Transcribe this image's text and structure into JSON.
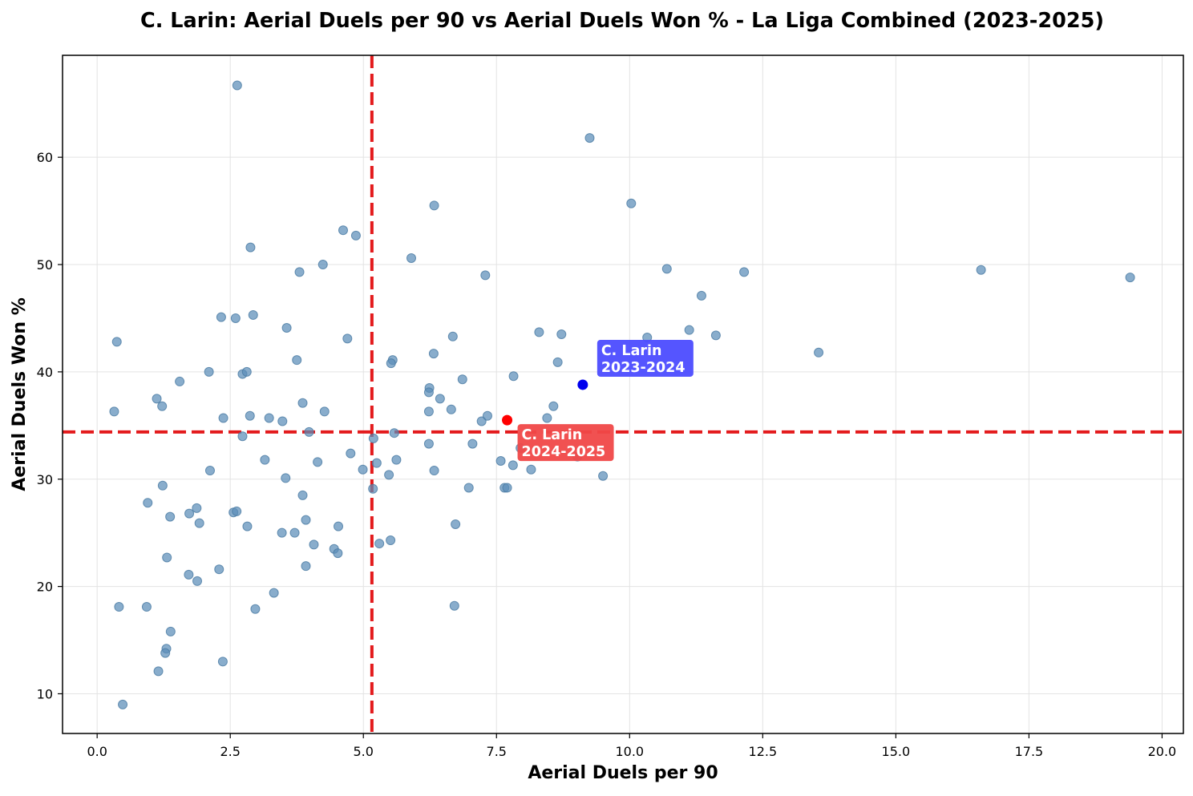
{
  "chart_data": {
    "type": "scatter",
    "title": "C. Larin: Aerial Duels per 90 vs Aerial Duels Won % - La Liga Combined (2023-2025)",
    "xlabel": "Aerial Duels per 90",
    "ylabel": "Aerial Duels Won %",
    "xlim": [
      -0.65,
      20.4
    ],
    "ylim": [
      6.3,
      69.5
    ],
    "xticks": [
      0.0,
      2.5,
      5.0,
      7.5,
      10.0,
      12.5,
      15.0,
      17.5,
      20.0
    ],
    "xtick_labels": [
      "0.0",
      "2.5",
      "5.0",
      "7.5",
      "10.0",
      "12.5",
      "15.0",
      "17.5",
      "20.0"
    ],
    "yticks": [
      10,
      20,
      30,
      40,
      50,
      60
    ],
    "ytick_labels": [
      "10",
      "20",
      "30",
      "40",
      "50",
      "60"
    ],
    "grid": true,
    "colors": {
      "points": "#5b8db8",
      "reference_lines": "#e31a1c",
      "highlight_2023": "#0000ee",
      "highlight_2024": "#ff0000",
      "label_2023_bg": "#4c4cff",
      "label_2024_bg": "#f04848"
    },
    "reference_lines": {
      "x": 5.16,
      "y": 34.4
    },
    "series": [
      {
        "name": "La Liga players",
        "points": [
          [
            2.63,
            66.7
          ],
          [
            9.25,
            61.8
          ],
          [
            6.33,
            55.5
          ],
          [
            10.03,
            55.7
          ],
          [
            4.62,
            53.2
          ],
          [
            4.86,
            52.7
          ],
          [
            2.88,
            51.6
          ],
          [
            5.9,
            50.6
          ],
          [
            4.24,
            50.0
          ],
          [
            3.8,
            49.3
          ],
          [
            7.29,
            49.0
          ],
          [
            10.7,
            49.6
          ],
          [
            12.15,
            49.3
          ],
          [
            16.6,
            49.5
          ],
          [
            19.4,
            48.8
          ],
          [
            11.35,
            47.1
          ],
          [
            2.33,
            45.1
          ],
          [
            2.6,
            45.0
          ],
          [
            2.93,
            45.3
          ],
          [
            3.56,
            44.1
          ],
          [
            8.3,
            43.7
          ],
          [
            8.72,
            43.5
          ],
          [
            10.33,
            43.2
          ],
          [
            11.12,
            43.9
          ],
          [
            11.62,
            43.4
          ],
          [
            0.37,
            42.8
          ],
          [
            4.7,
            43.1
          ],
          [
            6.68,
            43.3
          ],
          [
            13.55,
            41.8
          ],
          [
            3.75,
            41.1
          ],
          [
            6.32,
            41.7
          ],
          [
            5.55,
            41.1
          ],
          [
            5.52,
            40.8
          ],
          [
            8.65,
            40.9
          ],
          [
            2.1,
            40.0
          ],
          [
            2.73,
            39.8
          ],
          [
            2.81,
            40.0
          ],
          [
            1.55,
            39.1
          ],
          [
            7.82,
            39.6
          ],
          [
            6.86,
            39.3
          ],
          [
            6.24,
            38.5
          ],
          [
            6.23,
            38.1
          ],
          [
            6.44,
            37.5
          ],
          [
            1.12,
            37.5
          ],
          [
            1.22,
            36.8
          ],
          [
            3.86,
            37.1
          ],
          [
            0.32,
            36.3
          ],
          [
            2.37,
            35.7
          ],
          [
            2.87,
            35.9
          ],
          [
            3.23,
            35.7
          ],
          [
            3.48,
            35.4
          ],
          [
            4.27,
            36.3
          ],
          [
            6.23,
            36.3
          ],
          [
            6.65,
            36.5
          ],
          [
            7.22,
            35.4
          ],
          [
            7.33,
            35.9
          ],
          [
            8.45,
            35.7
          ],
          [
            8.57,
            36.8
          ],
          [
            2.73,
            34.0
          ],
          [
            3.98,
            34.4
          ],
          [
            5.19,
            33.8
          ],
          [
            5.58,
            34.3
          ],
          [
            6.23,
            33.3
          ],
          [
            7.05,
            33.3
          ],
          [
            4.76,
            32.4
          ],
          [
            3.15,
            31.8
          ],
          [
            4.14,
            31.6
          ],
          [
            5.25,
            31.5
          ],
          [
            5.62,
            31.8
          ],
          [
            7.58,
            31.7
          ],
          [
            7.81,
            31.3
          ],
          [
            7.95,
            32.9
          ],
          [
            9.02,
            32.1
          ],
          [
            2.12,
            30.8
          ],
          [
            4.99,
            30.9
          ],
          [
            5.48,
            30.4
          ],
          [
            6.33,
            30.8
          ],
          [
            8.15,
            30.9
          ],
          [
            9.5,
            30.3
          ],
          [
            3.54,
            30.1
          ],
          [
            1.23,
            29.4
          ],
          [
            5.18,
            29.1
          ],
          [
            6.98,
            29.2
          ],
          [
            7.65,
            29.2
          ],
          [
            7.7,
            29.2
          ],
          [
            3.86,
            28.5
          ],
          [
            0.95,
            27.8
          ],
          [
            1.87,
            27.3
          ],
          [
            1.73,
            26.8
          ],
          [
            2.56,
            26.9
          ],
          [
            2.62,
            27.0
          ],
          [
            1.37,
            26.5
          ],
          [
            1.92,
            25.9
          ],
          [
            2.82,
            25.6
          ],
          [
            3.92,
            26.2
          ],
          [
            4.53,
            25.6
          ],
          [
            6.73,
            25.8
          ],
          [
            3.47,
            25.0
          ],
          [
            3.71,
            25.0
          ],
          [
            4.07,
            23.9
          ],
          [
            5.3,
            24.0
          ],
          [
            5.51,
            24.3
          ],
          [
            4.45,
            23.5
          ],
          [
            4.52,
            23.1
          ],
          [
            1.31,
            22.7
          ],
          [
            2.29,
            21.6
          ],
          [
            1.72,
            21.1
          ],
          [
            1.88,
            20.5
          ],
          [
            3.92,
            21.9
          ],
          [
            3.32,
            19.4
          ],
          [
            0.41,
            18.1
          ],
          [
            0.93,
            18.1
          ],
          [
            2.97,
            17.9
          ],
          [
            6.71,
            18.2
          ],
          [
            1.38,
            15.8
          ],
          [
            1.3,
            14.2
          ],
          [
            1.28,
            13.8
          ],
          [
            1.15,
            12.1
          ],
          [
            2.36,
            13.0
          ],
          [
            0.48,
            9.0
          ]
        ]
      }
    ],
    "highlights": [
      {
        "name": "C. Larin",
        "season": "2023-2024",
        "x": 9.12,
        "y": 38.8,
        "label_line1": "C. Larin",
        "label_line2": "2023-2024"
      },
      {
        "name": "C. Larin",
        "season": "2024-2025",
        "x": 7.7,
        "y": 35.5,
        "label_line1": "C. Larin",
        "label_line2": "2024-2025"
      }
    ]
  }
}
